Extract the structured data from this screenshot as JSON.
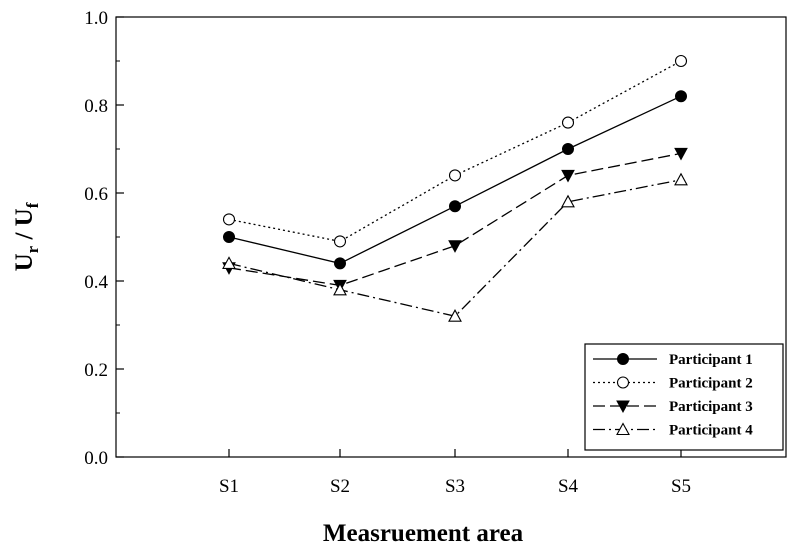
{
  "chart_data": {
    "type": "line",
    "xlabel": "Measruement area",
    "ylabel": {
      "main": "U",
      "sub_r": "r",
      "sep": " / ",
      "sub_f": "f"
    },
    "categories": [
      "S1",
      "S2",
      "S3",
      "S4",
      "S5"
    ],
    "ylim": [
      0.0,
      1.0
    ],
    "yticks": [
      "0.0",
      "0.2",
      "0.4",
      "0.6",
      "0.8",
      "1.0"
    ],
    "legend_position": "bottom-right",
    "grid": false,
    "series": [
      {
        "name": "Participant 1",
        "values": [
          0.5,
          0.44,
          0.57,
          0.7,
          0.82
        ],
        "marker": "filled-circle",
        "line": "solid",
        "color": "#000000"
      },
      {
        "name": "Participant 2",
        "values": [
          0.54,
          0.49,
          0.64,
          0.76,
          0.9
        ],
        "marker": "open-circle",
        "line": "dotted",
        "color": "#000000"
      },
      {
        "name": "Participant 3",
        "values": [
          0.43,
          0.39,
          0.48,
          0.64,
          0.69
        ],
        "marker": "filled-triangle-down",
        "line": "dashed",
        "color": "#000000"
      },
      {
        "name": "Participant 4",
        "values": [
          0.44,
          0.38,
          0.32,
          0.58,
          0.63
        ],
        "marker": "open-triangle-up",
        "line": "dash-dot",
        "color": "#000000"
      }
    ]
  }
}
